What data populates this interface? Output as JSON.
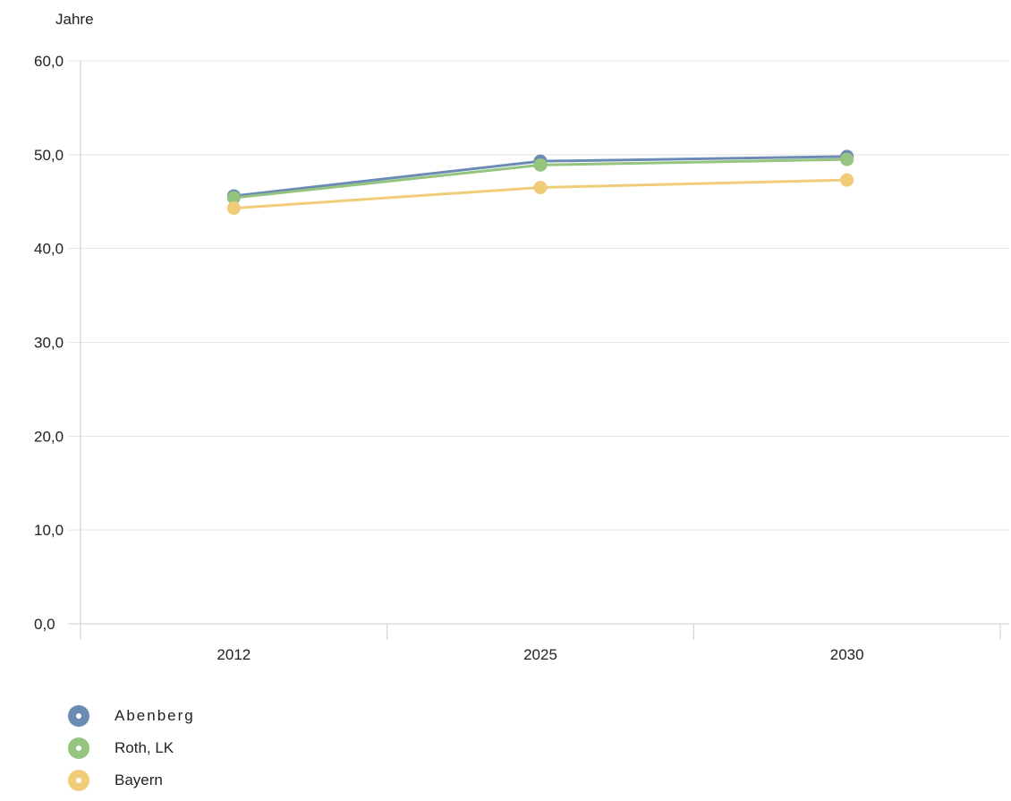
{
  "chart_data": {
    "type": "line",
    "ylabel": "Jahre",
    "categories": [
      "2012",
      "2025",
      "2030"
    ],
    "ylim": [
      0,
      60
    ],
    "yticks": [
      "0,0",
      "10,0",
      "20,0",
      "30,0",
      "40,0",
      "50,0",
      "60,0"
    ],
    "grid": true,
    "legend_position": "bottom-left",
    "series": [
      {
        "name": "Abenberg",
        "color": "#6b8bb5",
        "values": [
          45.6,
          49.3,
          49.8
        ]
      },
      {
        "name": "Roth, LK",
        "color": "#95c47e",
        "values": [
          45.4,
          48.9,
          49.5
        ]
      },
      {
        "name": "Bayern",
        "color": "#f0cc78",
        "values": [
          44.3,
          46.5,
          47.3
        ]
      }
    ]
  }
}
